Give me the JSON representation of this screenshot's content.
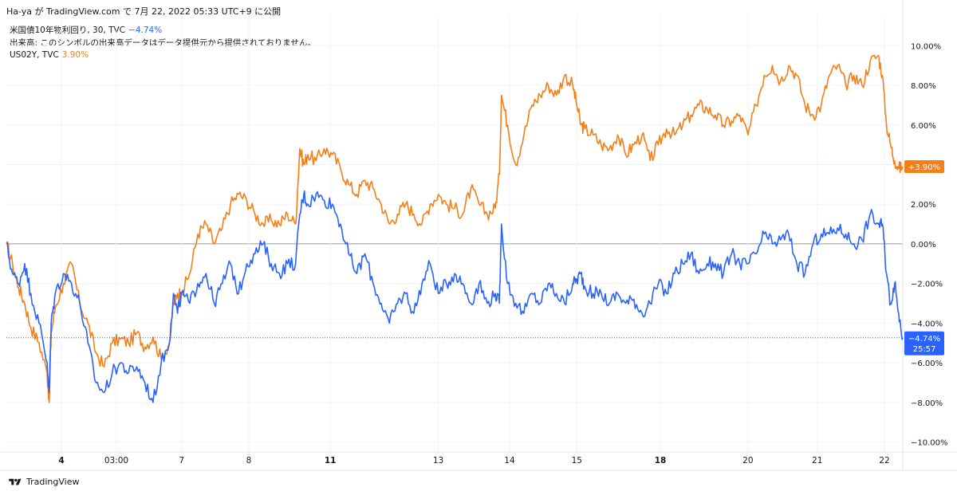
{
  "header": {
    "text": "Ha-ya が TradingView.com で 7月 22, 2022 05:33 UTC+9 に公開"
  },
  "legend": {
    "us10y_label": "米国債10年物利回り, 30, TVC",
    "us10y_value": "−4.74%",
    "volume_label": "出来高: このシンボルの出来高データはデータ提供元から提供されておりません。",
    "us02y_label": "US02Y, TVC",
    "us02y_value": "3.90%"
  },
  "badges": {
    "us02y": "+3.90%",
    "us10y": "−4.74%",
    "countdown": "25:57"
  },
  "footer": {
    "brand": "TradingView"
  },
  "colors": {
    "us10y": "#2962ff",
    "us02y": "#f57f17",
    "grid": "#f0f3fa",
    "zero": "#9598a1",
    "text": "#131722"
  },
  "chart_data": {
    "type": "line",
    "y_unit": "%",
    "ylim": [
      -10.5,
      11.5
    ],
    "yticks": [
      10,
      8,
      6,
      4,
      2,
      0,
      -2,
      -4,
      -6,
      -8,
      -10
    ],
    "ytick_labels": [
      "10.00%",
      "8.00%",
      "6.00%",
      "4.00%",
      "2.00%",
      "0.00%",
      "−2.00%",
      "−4.00%",
      "−6.00%",
      "−8.00%",
      "−10.00%"
    ],
    "xlim": [
      0,
      22
    ],
    "xticks": [
      {
        "x": 1.35,
        "label": "4",
        "bold": true
      },
      {
        "x": 2.7,
        "label": "03:00",
        "bold": false
      },
      {
        "x": 4.3,
        "label": "7",
        "bold": false
      },
      {
        "x": 5.95,
        "label": "8",
        "bold": false
      },
      {
        "x": 7.95,
        "label": "11",
        "bold": true
      },
      {
        "x": 10.6,
        "label": "13",
        "bold": false
      },
      {
        "x": 12.35,
        "label": "14",
        "bold": false
      },
      {
        "x": 14.0,
        "label": "15",
        "bold": false
      },
      {
        "x": 16.05,
        "label": "18",
        "bold": true
      },
      {
        "x": 18.2,
        "label": "20",
        "bold": false
      },
      {
        "x": 19.9,
        "label": "21",
        "bold": false
      },
      {
        "x": 21.55,
        "label": "22",
        "bold": false
      }
    ],
    "series": [
      {
        "name": "US02Y, TVC",
        "color": "#f57f17",
        "x": [
          0,
          0.15,
          0.3,
          0.45,
          0.6,
          0.8,
          1.0,
          1.05,
          1.1,
          1.2,
          1.4,
          1.6,
          1.8,
          2.0,
          2.2,
          2.4,
          2.6,
          2.8,
          3.0,
          3.2,
          3.4,
          3.6,
          3.8,
          4.0,
          4.1,
          4.2,
          4.3,
          4.5,
          4.7,
          4.9,
          5.1,
          5.3,
          5.5,
          5.7,
          5.9,
          6.1,
          6.3,
          6.5,
          6.7,
          6.9,
          7.1,
          7.2,
          7.3,
          7.4,
          7.6,
          7.8,
          8.0,
          8.2,
          8.4,
          8.6,
          8.8,
          9.0,
          9.2,
          9.4,
          9.6,
          9.8,
          10.0,
          10.2,
          10.4,
          10.6,
          10.8,
          11.0,
          11.2,
          11.4,
          11.6,
          11.8,
          12.0,
          12.1,
          12.15,
          12.3,
          12.5,
          12.7,
          12.9,
          13.1,
          13.3,
          13.5,
          13.7,
          13.9,
          14.0,
          14.1,
          14.2,
          14.4,
          14.6,
          14.8,
          15.0,
          15.2,
          15.4,
          15.6,
          15.8,
          16.0,
          16.2,
          16.4,
          16.6,
          16.8,
          17.0,
          17.2,
          17.4,
          17.6,
          17.8,
          18.0,
          18.2,
          18.4,
          18.6,
          18.8,
          19.0,
          19.2,
          19.4,
          19.6,
          19.8,
          20.0,
          20.2,
          20.4,
          20.6,
          20.8,
          21.0,
          21.2,
          21.4,
          21.5,
          21.6,
          21.7,
          21.8,
          21.9,
          22.0
        ],
        "values": [
          0,
          -1.0,
          -2.2,
          -3.0,
          -4.2,
          -5.0,
          -6.5,
          -8.0,
          -4.5,
          -3.2,
          -2.0,
          -1.0,
          -3.0,
          -4.0,
          -5.5,
          -6.2,
          -5.0,
          -4.8,
          -5.0,
          -4.5,
          -5.2,
          -4.7,
          -5.8,
          -5.0,
          -3.0,
          -2.5,
          -2.5,
          -1.5,
          0.5,
          1.0,
          0.0,
          0.8,
          2.0,
          2.5,
          2.2,
          1.5,
          1.0,
          1.2,
          1.0,
          1.5,
          1.0,
          4.8,
          4.0,
          4.5,
          4.2,
          4.8,
          4.5,
          3.8,
          3.0,
          2.5,
          3.2,
          2.8,
          2.0,
          1.0,
          1.5,
          2.0,
          1.5,
          1.0,
          2.0,
          2.5,
          2.0,
          1.8,
          1.5,
          2.8,
          2.0,
          1.5,
          1.8,
          3.5,
          7.5,
          6.0,
          4.0,
          5.5,
          7.0,
          7.5,
          8.0,
          7.5,
          8.5,
          8.0,
          7.0,
          6.0,
          5.8,
          5.5,
          5.0,
          4.8,
          5.5,
          4.5,
          5.0,
          5.5,
          4.2,
          5.0,
          5.8,
          5.5,
          6.0,
          6.5,
          7.0,
          6.8,
          6.5,
          6.0,
          6.2,
          6.5,
          5.5,
          7.0,
          8.5,
          9.0,
          8.2,
          9.0,
          8.5,
          7.0,
          6.5,
          7.0,
          8.5,
          9.0,
          8.0,
          8.5,
          8.0,
          9.2,
          9.5,
          8.5,
          6.0,
          5.0,
          4.2,
          3.8,
          3.9
        ]
      },
      {
        "name": "米国債10年物利回り, 30, TVC",
        "color": "#2962ff",
        "x": [
          0,
          0.15,
          0.3,
          0.45,
          0.6,
          0.8,
          1.0,
          1.05,
          1.1,
          1.2,
          1.4,
          1.6,
          1.8,
          2.0,
          2.2,
          2.4,
          2.6,
          2.8,
          3.0,
          3.2,
          3.4,
          3.6,
          3.8,
          4.0,
          4.1,
          4.2,
          4.3,
          4.5,
          4.7,
          4.9,
          5.1,
          5.3,
          5.5,
          5.7,
          5.9,
          6.1,
          6.3,
          6.5,
          6.7,
          6.9,
          7.1,
          7.2,
          7.3,
          7.4,
          7.6,
          7.8,
          8.0,
          8.2,
          8.4,
          8.6,
          8.8,
          9.0,
          9.2,
          9.4,
          9.6,
          9.8,
          10.0,
          10.2,
          10.4,
          10.6,
          10.8,
          11.0,
          11.2,
          11.4,
          11.6,
          11.8,
          12.0,
          12.1,
          12.15,
          12.3,
          12.5,
          12.7,
          12.9,
          13.1,
          13.3,
          13.5,
          13.7,
          13.9,
          14.0,
          14.1,
          14.2,
          14.4,
          14.6,
          14.8,
          15.0,
          15.2,
          15.4,
          15.6,
          15.8,
          16.0,
          16.2,
          16.4,
          16.6,
          16.8,
          17.0,
          17.2,
          17.4,
          17.6,
          17.8,
          18.0,
          18.2,
          18.4,
          18.6,
          18.8,
          19.0,
          19.2,
          19.4,
          19.6,
          19.8,
          20.0,
          20.2,
          20.4,
          20.6,
          20.8,
          21.0,
          21.2,
          21.4,
          21.5,
          21.6,
          21.7,
          21.8,
          21.9,
          22.0
        ],
        "values": [
          0,
          -1.5,
          -2.0,
          -1.0,
          -2.5,
          -4.0,
          -6.0,
          -7.5,
          -4.0,
          -2.5,
          -1.5,
          -2.0,
          -3.0,
          -5.0,
          -7.0,
          -7.5,
          -6.5,
          -6.0,
          -6.5,
          -6.2,
          -7.0,
          -8.0,
          -6.0,
          -5.0,
          -2.5,
          -3.5,
          -2.5,
          -3.0,
          -2.0,
          -1.5,
          -3.0,
          -2.0,
          -1.0,
          -2.5,
          -1.0,
          -0.5,
          0.0,
          -1.0,
          -1.5,
          -1.0,
          -1.0,
          1.5,
          2.5,
          2.0,
          2.5,
          2.2,
          2.0,
          1.0,
          -0.5,
          -1.5,
          -0.5,
          -2.0,
          -3.0,
          -4.0,
          -3.0,
          -2.5,
          -3.5,
          -2.0,
          -1.0,
          -2.5,
          -2.0,
          -1.5,
          -2.0,
          -3.0,
          -2.0,
          -3.0,
          -2.5,
          -3.0,
          1.0,
          -2.0,
          -3.0,
          -3.5,
          -2.5,
          -3.0,
          -2.0,
          -2.5,
          -3.0,
          -2.0,
          -1.8,
          -1.5,
          -2.2,
          -2.5,
          -2.5,
          -3.0,
          -2.5,
          -3.0,
          -2.8,
          -3.5,
          -3.0,
          -2.0,
          -2.5,
          -1.5,
          -1.0,
          -0.5,
          -1.5,
          -1.0,
          -1.0,
          -1.5,
          -0.5,
          -1.0,
          -1.0,
          -0.5,
          0.5,
          0.0,
          0.2,
          0.5,
          -1.0,
          -1.5,
          0.0,
          0.5,
          0.5,
          0.8,
          0.5,
          0.0,
          0.2,
          1.5,
          1.0,
          1.0,
          -1.5,
          -3.0,
          -2.0,
          -3.5,
          -4.74
        ]
      }
    ]
  }
}
